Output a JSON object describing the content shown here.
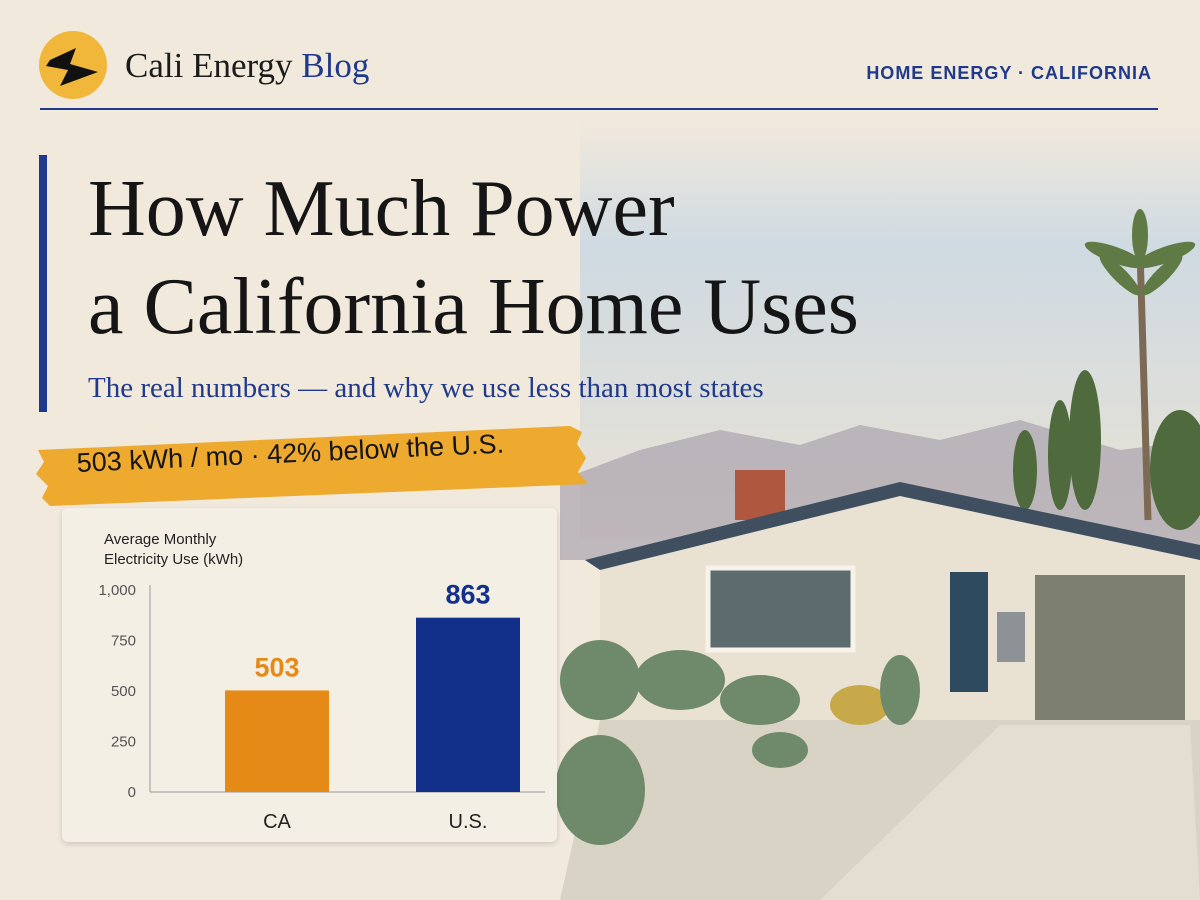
{
  "header": {
    "brand_name": "Cali Energy",
    "brand_accent": "Blog",
    "nav": "HOME ENERGY · CALIFORNIA"
  },
  "title_lines": [
    "How Much Power",
    "a California Home Uses"
  ],
  "subtitle": "The real numbers — and why we use less than most states",
  "banner": "503 kWh / mo · 42% below the U.S.",
  "chart_data": {
    "type": "bar",
    "title": "Average Monthly Electricity Use (kWh)",
    "categories": [
      "CA",
      "U.S."
    ],
    "values": [
      503,
      863
    ],
    "colors": [
      "#e58a17",
      "#12308a"
    ],
    "ylim": [
      0,
      1000
    ],
    "yticks": [
      0,
      250,
      500,
      750,
      {
        "value": 1000,
        "label": "1,000"
      }
    ],
    "grid": false
  }
}
